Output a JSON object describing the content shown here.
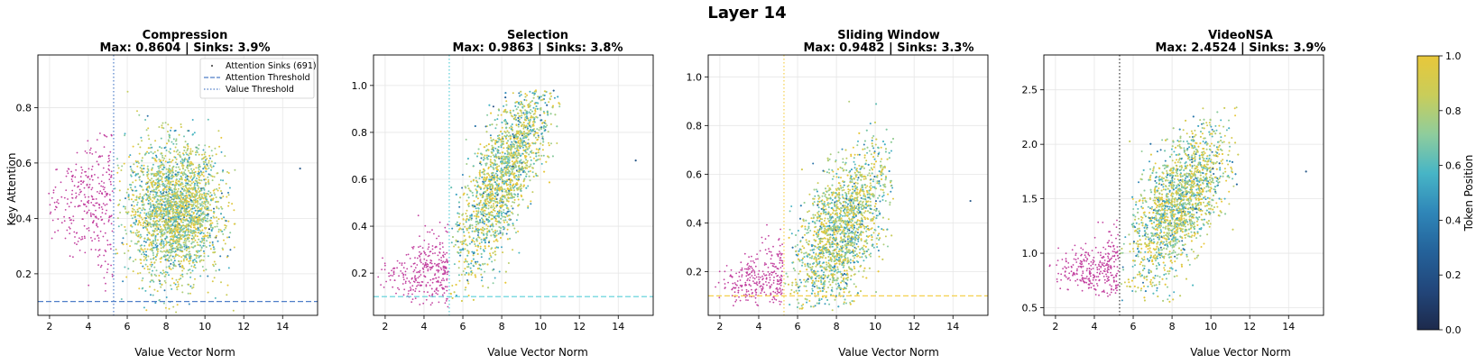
{
  "figure": {
    "suptitle": "Layer 14",
    "colorbar": {
      "label": "Token Position",
      "ticks": [
        0.0,
        0.2,
        0.4,
        0.6,
        0.8,
        1.0
      ],
      "tick_labels": [
        "0.0",
        "0.2",
        "0.4",
        "0.6",
        "0.8",
        "1.0"
      ],
      "colormap": [
        "#1d2a4c",
        "#22467a",
        "#24629a",
        "#2f86b8",
        "#47b5c6",
        "#8fcd9c",
        "#c9cd5a",
        "#e8c73a"
      ]
    },
    "legend": {
      "entries": [
        "Attention Sinks (691)",
        "Attention Threshold",
        "Value Threshold"
      ]
    },
    "colors": {
      "sink": "#c2409f",
      "compression_threshold": "#4f7ec8",
      "selection_threshold": "#58cfd8",
      "sliding_threshold": "#f5d04c",
      "videonsa_threshold": "#333333"
    }
  },
  "chart_data": [
    {
      "type": "scatter",
      "title": "Compression",
      "subtitle": "Max: 0.8604 | Sinks: 3.9%",
      "xlabel": "Value Vector Norm",
      "ylabel": "Key Attention",
      "xlim": [
        1.4,
        15.8
      ],
      "ylim": [
        0.05,
        0.99
      ],
      "xticks": [
        2,
        4,
        6,
        8,
        10,
        12,
        14
      ],
      "yticks": [
        0.2,
        0.4,
        0.6,
        0.8
      ],
      "ytick_labels": [
        "0.2",
        "0.4",
        "0.6",
        "0.8"
      ],
      "value_threshold": 5.3,
      "attention_threshold": 0.1,
      "cloud": {
        "x_center": 8.4,
        "x_spread": 1.2,
        "y_center": 0.43,
        "y_spread": 0.12,
        "x_min": 5.35,
        "x_max": 11.6,
        "y_min": 0.06,
        "y_max": 0.86,
        "slope": 0.0
      },
      "sinks": {
        "x_range": [
          1.5,
          5.25
        ],
        "y_center": 0.45,
        "y_spread": 0.11,
        "y_min": 0.13,
        "y_max": 0.72
      },
      "outlier": [
        14.9,
        0.58
      ],
      "max": 0.8604,
      "sink_pct": 3.9,
      "show_legend": true,
      "grid": true
    },
    {
      "type": "scatter",
      "title": "Selection",
      "subtitle": "Max: 0.9863 | Sinks: 3.8%",
      "xlabel": "Value Vector Norm",
      "ylabel": "",
      "xlim": [
        1.4,
        15.8
      ],
      "ylim": [
        0.02,
        1.13
      ],
      "xticks": [
        2,
        4,
        6,
        8,
        10,
        12,
        14
      ],
      "yticks": [
        0.2,
        0.4,
        0.6,
        0.8,
        1.0
      ],
      "ytick_labels": [
        "0.2",
        "0.4",
        "0.6",
        "0.8",
        "1.0"
      ],
      "value_threshold": 5.3,
      "attention_threshold": 0.1,
      "cloud": {
        "x_center": 8.1,
        "x_spread": 1.3,
        "y_center": 0.62,
        "y_spread": 0.14,
        "x_min": 5.35,
        "x_max": 11.0,
        "y_min": 0.05,
        "y_max": 0.98,
        "slope": 0.13
      },
      "sinks": {
        "x_range": [
          1.5,
          5.25
        ],
        "y_center": 0.2,
        "y_spread": 0.08,
        "y_min": 0.05,
        "y_max": 0.55
      },
      "outlier": [
        14.9,
        0.68
      ],
      "max": 0.9863,
      "sink_pct": 3.8,
      "show_legend": false,
      "grid": true
    },
    {
      "type": "scatter",
      "title": "Sliding Window",
      "subtitle": "Max: 0.9482 | Sinks: 3.3%",
      "xlabel": "Value Vector Norm",
      "ylabel": "",
      "xlim": [
        1.4,
        15.8
      ],
      "ylim": [
        0.02,
        1.09
      ],
      "xticks": [
        2,
        4,
        6,
        8,
        10,
        12,
        14
      ],
      "yticks": [
        0.2,
        0.4,
        0.6,
        0.8,
        1.0
      ],
      "ytick_labels": [
        "0.2",
        "0.4",
        "0.6",
        "0.8",
        "1.0"
      ],
      "value_threshold": 5.3,
      "attention_threshold": 0.1,
      "cloud": {
        "x_center": 8.2,
        "x_spread": 1.25,
        "y_center": 0.36,
        "y_spread": 0.14,
        "x_min": 5.35,
        "x_max": 11.0,
        "y_min": 0.04,
        "y_max": 0.95,
        "slope": 0.08
      },
      "sinks": {
        "x_range": [
          1.5,
          5.25
        ],
        "y_center": 0.15,
        "y_spread": 0.07,
        "y_min": 0.06,
        "y_max": 0.48
      },
      "outlier": [
        14.9,
        0.49
      ],
      "max": 0.9482,
      "sink_pct": 3.3,
      "show_legend": false,
      "grid": true
    },
    {
      "type": "scatter",
      "title": "VideoNSA",
      "subtitle": "Max: 2.4524 | Sinks: 3.9%",
      "xlabel": "Value Vector Norm",
      "ylabel": "",
      "xlim": [
        1.4,
        15.8
      ],
      "ylim": [
        0.43,
        2.82
      ],
      "xticks": [
        2,
        4,
        6,
        8,
        10,
        12,
        14
      ],
      "yticks": [
        0.5,
        1.0,
        1.5,
        2.0,
        2.5
      ],
      "ytick_labels": [
        "0.5",
        "1.0",
        "1.5",
        "2.0",
        "2.5"
      ],
      "value_threshold": 5.3,
      "attention_threshold": null,
      "cloud": {
        "x_center": 8.3,
        "x_spread": 1.25,
        "y_center": 1.45,
        "y_spread": 0.28,
        "x_min": 5.35,
        "x_max": 11.5,
        "y_min": 0.55,
        "y_max": 2.35,
        "slope": 0.17
      },
      "sinks": {
        "x_range": [
          1.5,
          5.25
        ],
        "y_center": 0.85,
        "y_spread": 0.13,
        "y_min": 0.6,
        "y_max": 1.6
      },
      "outlier": [
        14.9,
        1.75
      ],
      "max": 2.4524,
      "sink_pct": 3.9,
      "show_legend": false,
      "grid": true
    }
  ]
}
